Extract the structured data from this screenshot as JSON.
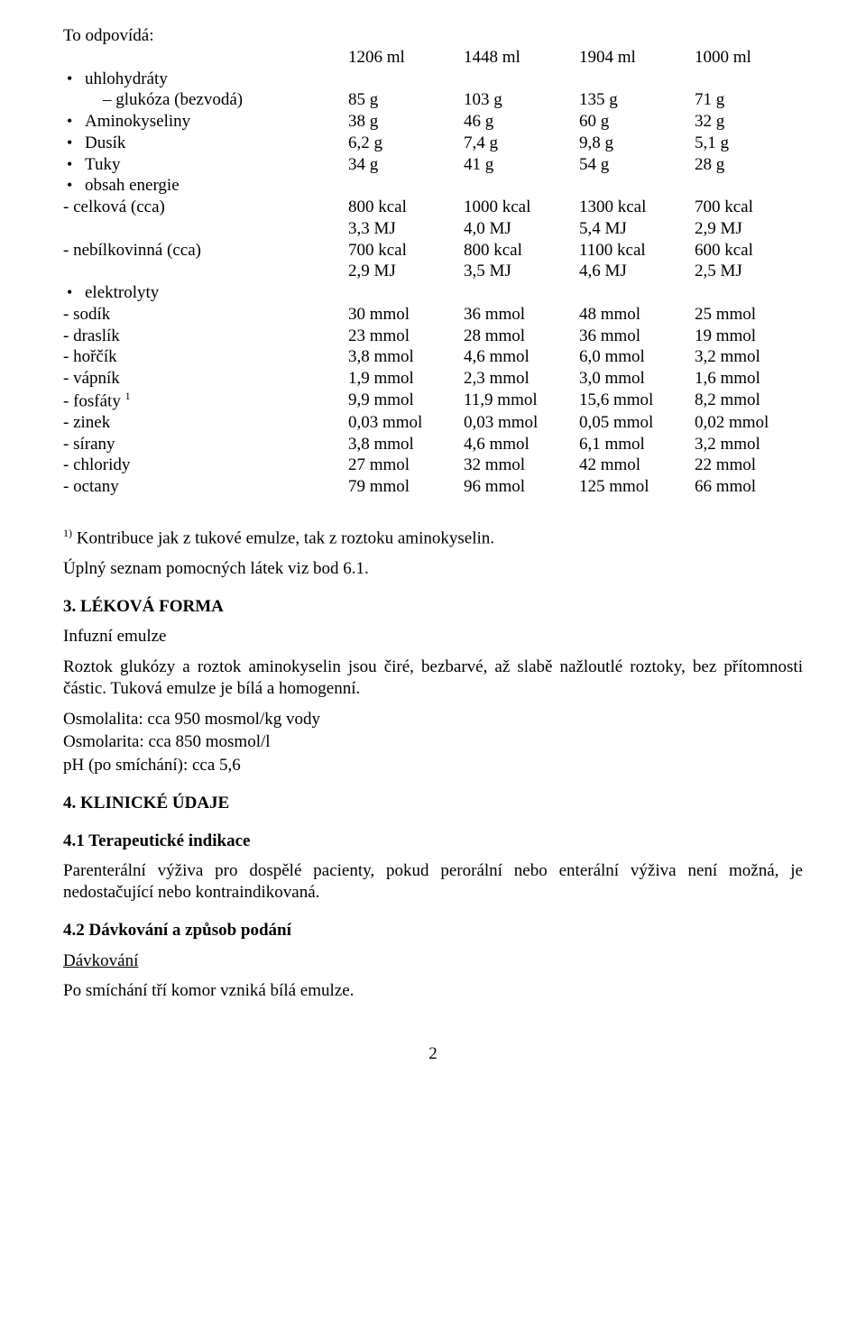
{
  "table": {
    "header": [
      "To odpovídá:",
      "1206 ml",
      "1448 ml",
      "1904 ml",
      "1000 ml"
    ],
    "rows": [
      {
        "t": "bullet",
        "l": "uhlohydráty",
        "v": [
          "",
          "",
          "",
          ""
        ]
      },
      {
        "t": "sub",
        "l": "– glukóza (bezvodá)",
        "v": [
          "85 g",
          "103 g",
          "135 g",
          "71 g"
        ]
      },
      {
        "t": "bullet",
        "l": "Aminokyseliny",
        "v": [
          "38 g",
          "46 g",
          "60 g",
          "32 g"
        ]
      },
      {
        "t": "bullet",
        "l": "Dusík",
        "v": [
          "6,2 g",
          "7,4 g",
          "9,8 g",
          "5,1 g"
        ]
      },
      {
        "t": "bullet",
        "l": "Tuky",
        "v": [
          "34 g",
          "41 g",
          "54 g",
          "28 g"
        ]
      },
      {
        "t": "bullet",
        "l": "obsah energie",
        "v": [
          "",
          "",
          "",
          ""
        ]
      },
      {
        "t": "dash",
        "l": "- celková (cca)",
        "v": [
          "800 kcal",
          "1000 kcal",
          "1300 kcal",
          "700 kcal"
        ]
      },
      {
        "t": "dash",
        "l": "",
        "v": [
          "3,3 MJ",
          "4,0 MJ",
          "5,4 MJ",
          "2,9 MJ"
        ]
      },
      {
        "t": "dash",
        "l": "- nebílkovinná (cca)",
        "v": [
          "700 kcal",
          "800 kcal",
          "1100 kcal",
          "600 kcal"
        ]
      },
      {
        "t": "dash",
        "l": "",
        "v": [
          "2,9 MJ",
          "3,5 MJ",
          "4,6 MJ",
          "2,5 MJ"
        ]
      },
      {
        "t": "bullet",
        "l": "elektrolyty",
        "v": [
          "",
          "",
          "",
          ""
        ]
      },
      {
        "t": "dash",
        "l": "- sodík",
        "v": [
          "30 mmol",
          "36 mmol",
          "48 mmol",
          "25 mmol"
        ]
      },
      {
        "t": "dash",
        "l": "- draslík",
        "v": [
          "23 mmol",
          "28 mmol",
          "36 mmol",
          "19 mmol"
        ]
      },
      {
        "t": "dash",
        "l": "- hořčík",
        "v": [
          "3,8 mmol",
          "4,6 mmol",
          "6,0 mmol",
          "3,2 mmol"
        ]
      },
      {
        "t": "dash",
        "l": "- vápník",
        "v": [
          "1,9 mmol",
          "2,3 mmol",
          "3,0 mmol",
          "1,6 mmol"
        ]
      },
      {
        "t": "dash",
        "l": "- fosfáty ",
        "sup": "1",
        "v": [
          "9,9 mmol",
          "11,9 mmol",
          "15,6 mmol",
          "8,2 mmol"
        ]
      },
      {
        "t": "dash",
        "l": "- zinek",
        "v": [
          "0,03 mmol",
          "0,03 mmol",
          "0,05 mmol",
          "0,02 mmol"
        ]
      },
      {
        "t": "dash",
        "l": "- sírany",
        "v": [
          "3,8 mmol",
          "4,6 mmol",
          "6,1 mmol",
          "3,2 mmol"
        ]
      },
      {
        "t": "dash",
        "l": "- chloridy",
        "v": [
          "27 mmol",
          "32 mmol",
          "42 mmol",
          "22 mmol"
        ]
      },
      {
        "t": "dash",
        "l": "- octany",
        "v": [
          "79 mmol",
          "96 mmol",
          "125 mmol",
          "66 mmol"
        ]
      }
    ]
  },
  "footnote_sup": "1)",
  "footnote_text": " Kontribuce jak z tukové emulze, tak z roztoku aminokyselin.",
  "excip_line": "Úplný seznam pomocných látek viz bod 6.1.",
  "sec3_title": "3. LÉKOVÁ FORMA",
  "sec3_p1": "Infuzní emulze",
  "sec3_p2": "Roztok glukózy a roztok aminokyselin jsou čiré, bezbarvé, až slabě nažloutlé roztoky, bez přítomnosti částic. Tuková emulze je bílá a homogenní.",
  "osmo1": "Osmolalita: cca 950 mosmol/kg vody",
  "osmo2": "Osmolarita: cca 850 mosmol/l",
  "ph_line": "pH (po smíchání): cca 5,6",
  "sec4_title": "4. KLINICKÉ ÚDAJE",
  "sec4_1_title": "4.1 Terapeutické indikace",
  "sec4_1_p": "Parenterální výživa pro dospělé pacienty, pokud perorální nebo enterální výživa není možná, je nedostačující nebo kontraindikovaná.",
  "sec4_2_title": "4.2 Dávkování a způsob podání",
  "dosing_label": "Dávkování",
  "dosing_p": "Po smíchání tří komor vzniká bílá emulze.",
  "page_num": "2"
}
